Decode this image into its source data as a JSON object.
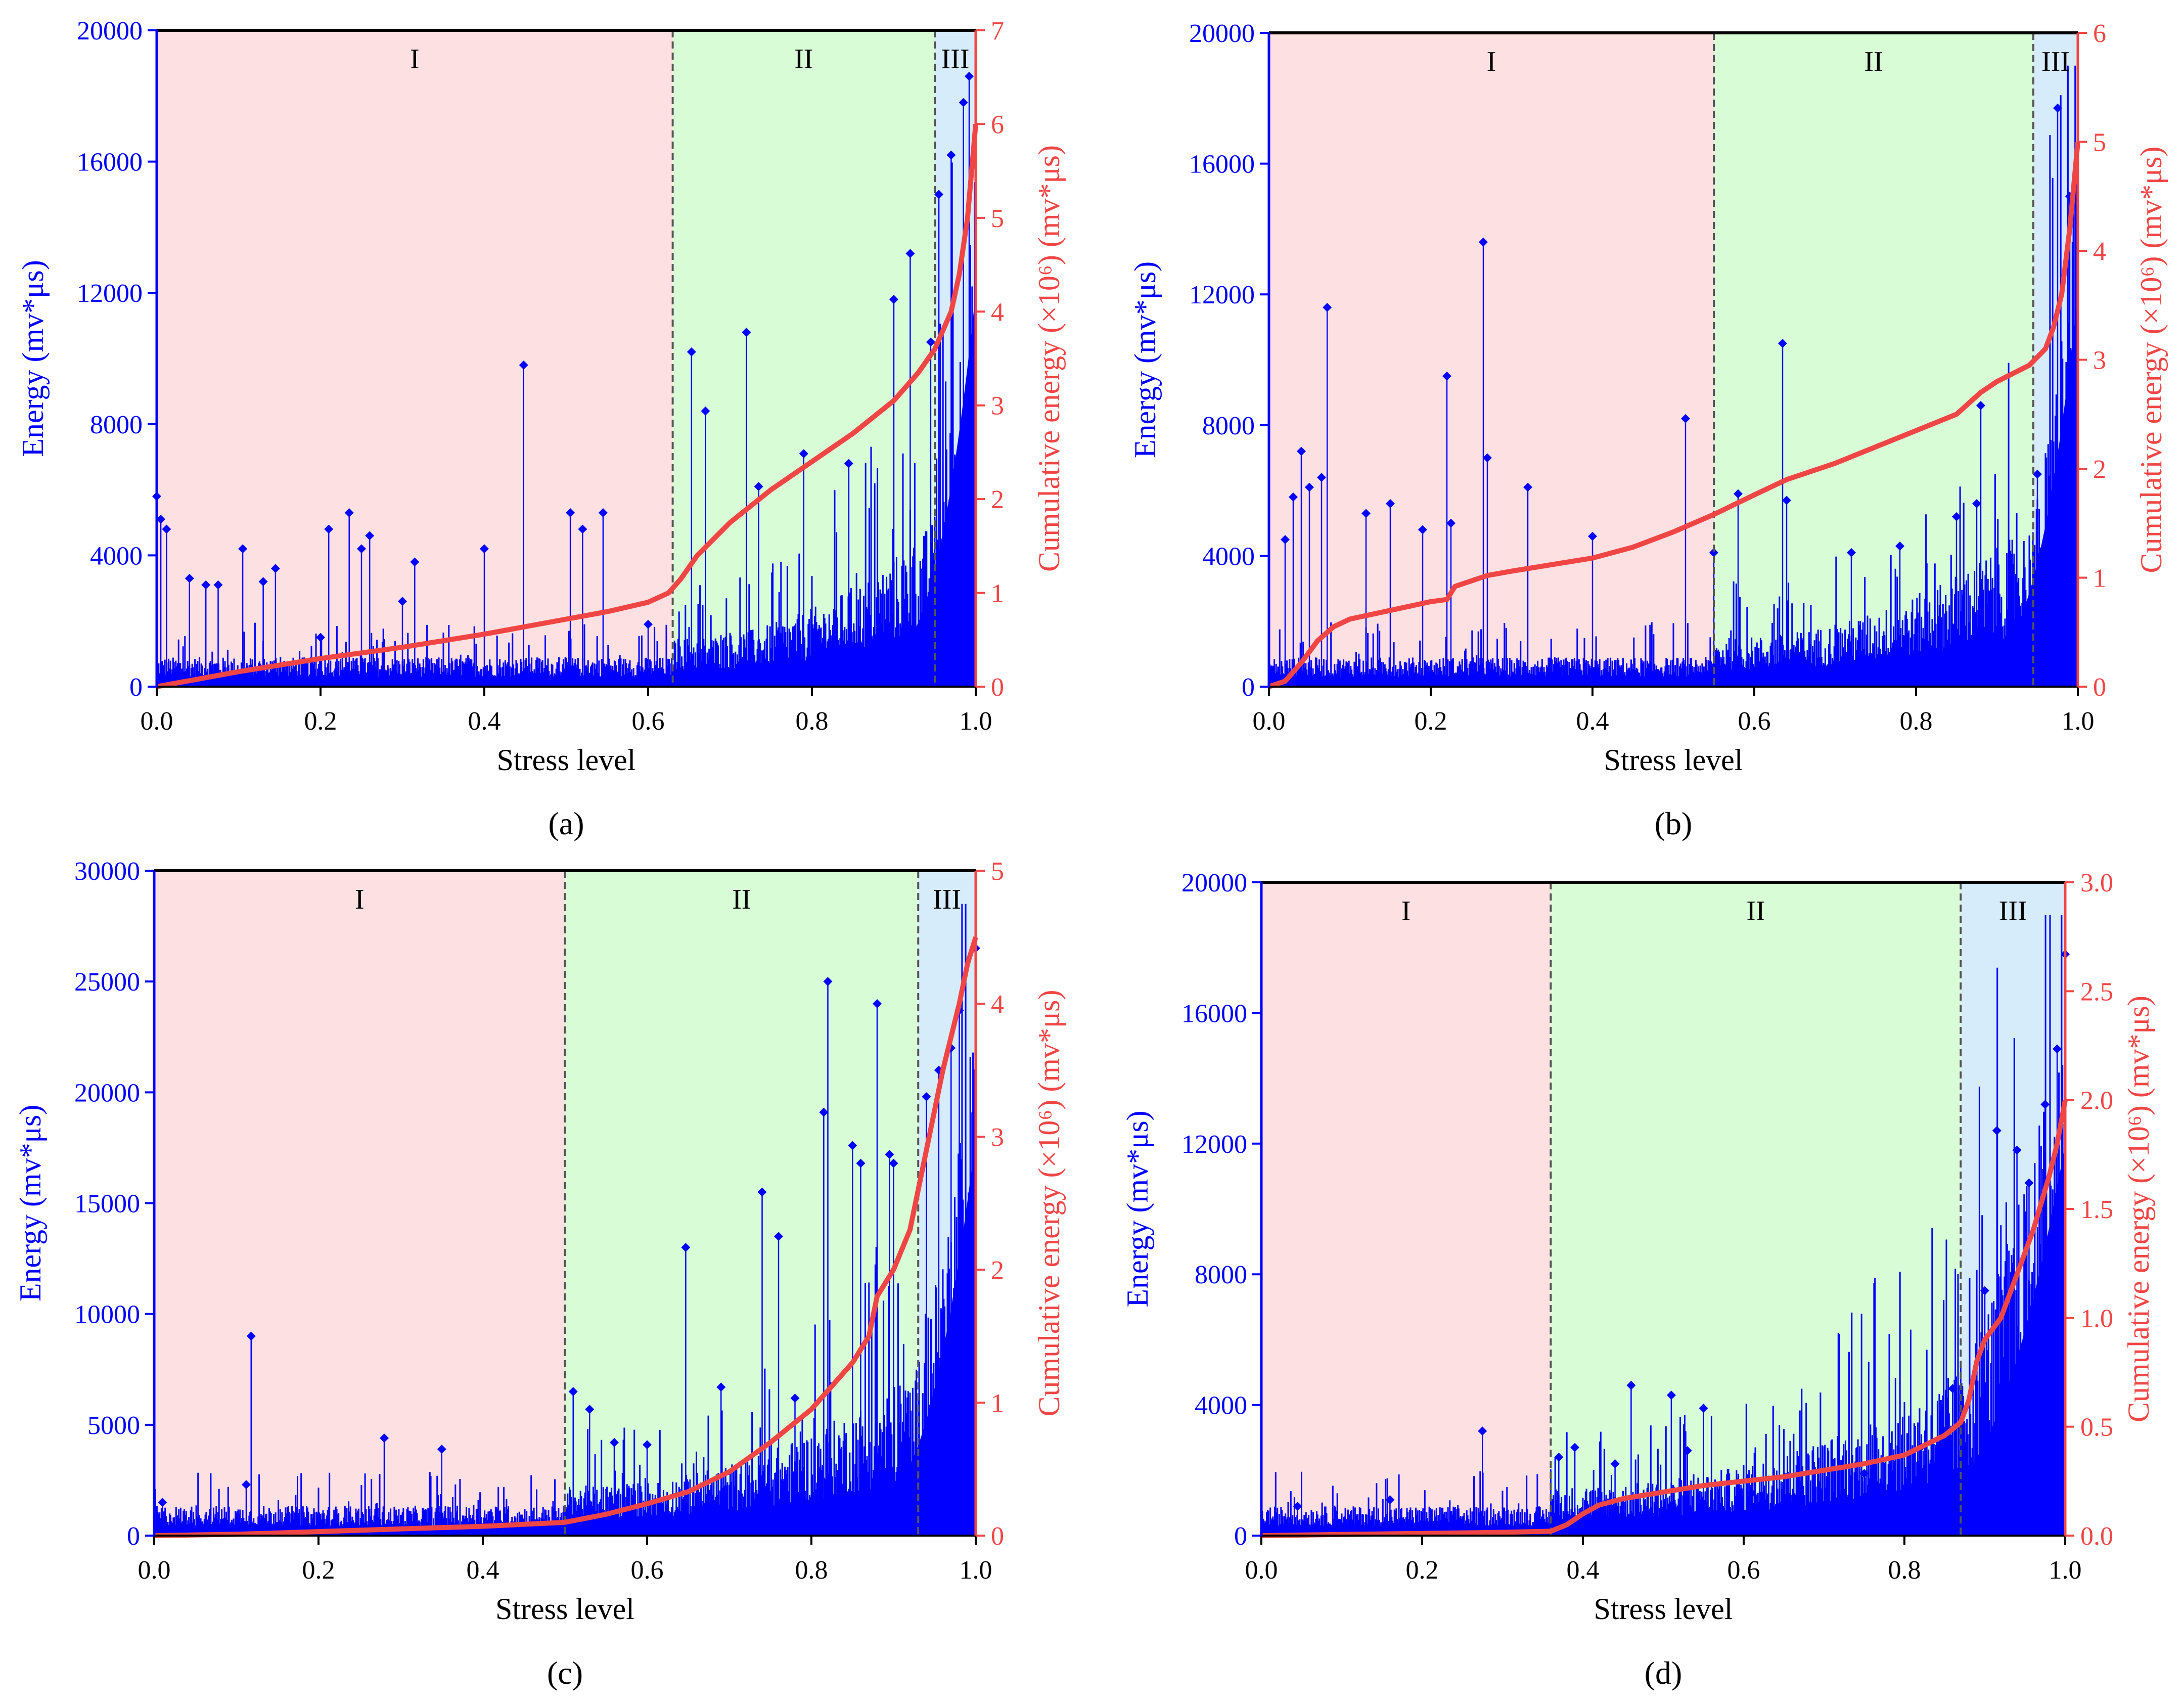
{
  "colors": {
    "energy": "#0000ff",
    "cumulative": "#f04545",
    "region_I": "#fde0e1",
    "region_II": "#d8fdd6",
    "region_III": "#d6ecfb",
    "divider": "#555555",
    "axis": "#000000"
  },
  "chart_data": [
    {
      "id": "a",
      "caption": "(a)",
      "type": "scatter",
      "xlabel": "Stress level",
      "ylabel": "Energy (mv*μs)",
      "y2label": "Cumulative energy (×10⁶) (mv*μs)",
      "xlim": [
        0,
        1
      ],
      "ylim": [
        0,
        20000
      ],
      "y2lim": [
        0,
        7
      ],
      "xticks": [
        "0.0",
        "0.2",
        "0.4",
        "0.6",
        "0.8",
        "1.0"
      ],
      "yticks": [
        "0",
        "4000",
        "8000",
        "12000",
        "16000",
        "20000"
      ],
      "y2ticks": [
        "0",
        "1",
        "2",
        "3",
        "4",
        "5",
        "6",
        "7"
      ],
      "regions": [
        {
          "label": "I",
          "from": 0,
          "to": 0.63
        },
        {
          "label": "II",
          "from": 0.63,
          "to": 0.95
        },
        {
          "label": "III",
          "from": 0.95,
          "to": 1.0
        }
      ],
      "spikes": [
        [
          0.0,
          5800
        ],
        [
          0.005,
          5100
        ],
        [
          0.012,
          4800
        ],
        [
          0.04,
          3300
        ],
        [
          0.06,
          3100
        ],
        [
          0.075,
          3100
        ],
        [
          0.105,
          4200
        ],
        [
          0.13,
          3200
        ],
        [
          0.145,
          3600
        ],
        [
          0.2,
          1500
        ],
        [
          0.21,
          4800
        ],
        [
          0.235,
          5300
        ],
        [
          0.25,
          4200
        ],
        [
          0.26,
          4600
        ],
        [
          0.3,
          2600
        ],
        [
          0.315,
          3800
        ],
        [
          0.4,
          4200
        ],
        [
          0.448,
          9800
        ],
        [
          0.505,
          5300
        ],
        [
          0.52,
          4800
        ],
        [
          0.545,
          5300
        ],
        [
          0.6,
          1900
        ],
        [
          0.653,
          10200
        ],
        [
          0.67,
          8400
        ],
        [
          0.72,
          10800
        ],
        [
          0.735,
          6100
        ],
        [
          0.79,
          7100
        ],
        [
          0.845,
          6800
        ],
        [
          0.9,
          11800
        ],
        [
          0.92,
          13200
        ],
        [
          0.945,
          10500
        ],
        [
          0.955,
          15000
        ],
        [
          0.97,
          16200
        ],
        [
          0.985,
          17800
        ],
        [
          0.992,
          18600
        ]
      ],
      "series": [
        {
          "name": "Cumulative energy",
          "axis": "right",
          "x": [
            0,
            0.05,
            0.1,
            0.2,
            0.3,
            0.4,
            0.5,
            0.55,
            0.6,
            0.625,
            0.64,
            0.66,
            0.7,
            0.75,
            0.8,
            0.85,
            0.9,
            0.93,
            0.95,
            0.97,
            0.98,
            0.99,
            1.0
          ],
          "y": [
            0,
            0.08,
            0.16,
            0.3,
            0.42,
            0.56,
            0.72,
            0.8,
            0.9,
            1.0,
            1.15,
            1.4,
            1.75,
            2.1,
            2.4,
            2.7,
            3.05,
            3.35,
            3.6,
            4.0,
            4.4,
            5.0,
            6.0
          ]
        }
      ]
    },
    {
      "id": "b",
      "caption": "(b)",
      "type": "scatter",
      "xlabel": "Stress level",
      "ylabel": "Energy (mv*μs)",
      "y2label": "Cumulative energy (×10⁶) (mv*μs)",
      "xlim": [
        0,
        1
      ],
      "ylim": [
        0,
        20000
      ],
      "y2lim": [
        0,
        6
      ],
      "xticks": [
        "0.0",
        "0.2",
        "0.4",
        "0.6",
        "0.8",
        "1.0"
      ],
      "yticks": [
        "0",
        "4000",
        "8000",
        "12000",
        "16000",
        "20000"
      ],
      "y2ticks": [
        "0",
        "1",
        "2",
        "3",
        "4",
        "5",
        "6"
      ],
      "regions": [
        {
          "label": "I",
          "from": 0,
          "to": 0.55
        },
        {
          "label": "II",
          "from": 0.55,
          "to": 0.945
        },
        {
          "label": "III",
          "from": 0.945,
          "to": 1.0
        }
      ],
      "spikes": [
        [
          0.02,
          4500
        ],
        [
          0.03,
          5800
        ],
        [
          0.04,
          7200
        ],
        [
          0.05,
          6100
        ],
        [
          0.065,
          6400
        ],
        [
          0.072,
          11600
        ],
        [
          0.12,
          5300
        ],
        [
          0.15,
          5600
        ],
        [
          0.19,
          4800
        ],
        [
          0.22,
          9500
        ],
        [
          0.225,
          5000
        ],
        [
          0.265,
          13600
        ],
        [
          0.27,
          7000
        ],
        [
          0.32,
          6100
        ],
        [
          0.4,
          4600
        ],
        [
          0.515,
          8200
        ],
        [
          0.55,
          4100
        ],
        [
          0.58,
          5900
        ],
        [
          0.635,
          10500
        ],
        [
          0.64,
          5700
        ],
        [
          0.72,
          4100
        ],
        [
          0.78,
          4300
        ],
        [
          0.85,
          5200
        ],
        [
          0.875,
          5600
        ],
        [
          0.88,
          8600
        ],
        [
          0.95,
          6500
        ],
        [
          0.975,
          17700
        ],
        [
          0.99,
          15000
        ]
      ],
      "series": [
        {
          "name": "Cumulative energy",
          "axis": "right",
          "x": [
            0,
            0.02,
            0.04,
            0.06,
            0.08,
            0.1,
            0.15,
            0.2,
            0.22,
            0.23,
            0.27,
            0.3,
            0.35,
            0.4,
            0.45,
            0.5,
            0.55,
            0.6,
            0.64,
            0.7,
            0.8,
            0.85,
            0.88,
            0.9,
            0.94,
            0.96,
            0.97,
            0.98,
            0.99,
            1.0
          ],
          "y": [
            0,
            0.05,
            0.22,
            0.42,
            0.55,
            0.62,
            0.7,
            0.78,
            0.8,
            0.92,
            1.02,
            1.06,
            1.12,
            1.18,
            1.28,
            1.42,
            1.58,
            1.76,
            1.9,
            2.05,
            2.35,
            2.5,
            2.7,
            2.8,
            2.95,
            3.1,
            3.3,
            3.6,
            4.2,
            5.0
          ]
        }
      ]
    },
    {
      "id": "c",
      "caption": "(c)",
      "type": "scatter",
      "xlabel": "Stress level",
      "ylabel": "Energy (mv*μs)",
      "y2label": "Cumulative energy (×10⁶) (mv*μs)",
      "xlim": [
        0,
        1
      ],
      "ylim": [
        0,
        30000
      ],
      "y2lim": [
        0,
        5
      ],
      "xticks": [
        "0.0",
        "0.2",
        "0.4",
        "0.6",
        "0.8",
        "1.0"
      ],
      "yticks": [
        "0",
        "5000",
        "10000",
        "15000",
        "20000",
        "25000",
        "30000"
      ],
      "y2ticks": [
        "0",
        "1",
        "2",
        "3",
        "4",
        "5"
      ],
      "regions": [
        {
          "label": "I",
          "from": 0,
          "to": 0.5
        },
        {
          "label": "II",
          "from": 0.5,
          "to": 0.93
        },
        {
          "label": "III",
          "from": 0.93,
          "to": 1.0
        }
      ],
      "spikes": [
        [
          0.01,
          1500
        ],
        [
          0.112,
          2300
        ],
        [
          0.118,
          9000
        ],
        [
          0.28,
          4400
        ],
        [
          0.35,
          3900
        ],
        [
          0.51,
          6500
        ],
        [
          0.53,
          5700
        ],
        [
          0.56,
          4200
        ],
        [
          0.6,
          4100
        ],
        [
          0.647,
          13000
        ],
        [
          0.69,
          6700
        ],
        [
          0.74,
          15500
        ],
        [
          0.76,
          13500
        ],
        [
          0.78,
          6200
        ],
        [
          0.815,
          19100
        ],
        [
          0.82,
          25000
        ],
        [
          0.85,
          17600
        ],
        [
          0.86,
          16800
        ],
        [
          0.88,
          24000
        ],
        [
          0.895,
          17200
        ],
        [
          0.9,
          16800
        ],
        [
          0.94,
          19800
        ],
        [
          0.955,
          21000
        ],
        [
          0.97,
          22000
        ],
        [
          0.98,
          23700
        ],
        [
          1.0,
          26500
        ]
      ],
      "series": [
        {
          "name": "Cumulative energy",
          "axis": "right",
          "x": [
            0,
            0.1,
            0.2,
            0.3,
            0.4,
            0.5,
            0.55,
            0.6,
            0.65,
            0.7,
            0.75,
            0.8,
            0.85,
            0.87,
            0.88,
            0.9,
            0.92,
            0.94,
            0.96,
            0.98,
            0.99,
            1.0
          ],
          "y": [
            0,
            0.01,
            0.03,
            0.05,
            0.07,
            0.1,
            0.16,
            0.24,
            0.33,
            0.48,
            0.7,
            0.95,
            1.3,
            1.5,
            1.8,
            2.0,
            2.3,
            2.9,
            3.5,
            4.0,
            4.3,
            4.5
          ]
        }
      ]
    },
    {
      "id": "d",
      "caption": "(d)",
      "type": "scatter",
      "xlabel": "Stress level",
      "ylabel": "Energy (mv*μs)",
      "y2label": "Cumulative energy (×10⁶) (mv*μs)",
      "xlim": [
        0,
        1
      ],
      "ylim": [
        0,
        20000
      ],
      "y2lim": [
        0,
        3.0
      ],
      "xticks": [
        "0.0",
        "0.2",
        "0.4",
        "0.6",
        "0.8",
        "1.0"
      ],
      "yticks": [
        "0",
        "4000",
        "8000",
        "12000",
        "16000",
        "20000"
      ],
      "y2ticks": [
        "0.0",
        "0.5",
        "1.0",
        "1.5",
        "2.0",
        "2.5",
        "3.0"
      ],
      "regions": [
        {
          "label": "I",
          "from": 0,
          "to": 0.36
        },
        {
          "label": "II",
          "from": 0.36,
          "to": 0.87
        },
        {
          "label": "III",
          "from": 0.87,
          "to": 1.0
        }
      ],
      "spikes": [
        [
          0.045,
          900
        ],
        [
          0.16,
          1100
        ],
        [
          0.275,
          3200
        ],
        [
          0.37,
          2400
        ],
        [
          0.39,
          2700
        ],
        [
          0.44,
          2200
        ],
        [
          0.46,
          4600
        ],
        [
          0.51,
          4300
        ],
        [
          0.53,
          2600
        ],
        [
          0.55,
          3900
        ],
        [
          0.61,
          1300
        ],
        [
          0.75,
          1900
        ],
        [
          0.82,
          2700
        ],
        [
          0.86,
          4500
        ],
        [
          0.9,
          7500
        ],
        [
          0.915,
          12400
        ],
        [
          0.94,
          11800
        ],
        [
          0.955,
          10800
        ],
        [
          0.975,
          13200
        ],
        [
          0.99,
          14900
        ],
        [
          1.0,
          17800
        ]
      ],
      "series": [
        {
          "name": "Cumulative energy",
          "axis": "right",
          "x": [
            0,
            0.1,
            0.2,
            0.3,
            0.36,
            0.38,
            0.4,
            0.42,
            0.45,
            0.5,
            0.55,
            0.6,
            0.65,
            0.7,
            0.75,
            0.8,
            0.85,
            0.87,
            0.88,
            0.89,
            0.9,
            0.92,
            0.94,
            0.96,
            0.98,
            0.99,
            1.0
          ],
          "y": [
            0,
            0.005,
            0.01,
            0.015,
            0.02,
            0.05,
            0.1,
            0.14,
            0.17,
            0.2,
            0.23,
            0.25,
            0.27,
            0.3,
            0.33,
            0.37,
            0.46,
            0.52,
            0.62,
            0.8,
            0.9,
            1.0,
            1.2,
            1.4,
            1.65,
            1.8,
            2.0
          ]
        }
      ]
    }
  ]
}
